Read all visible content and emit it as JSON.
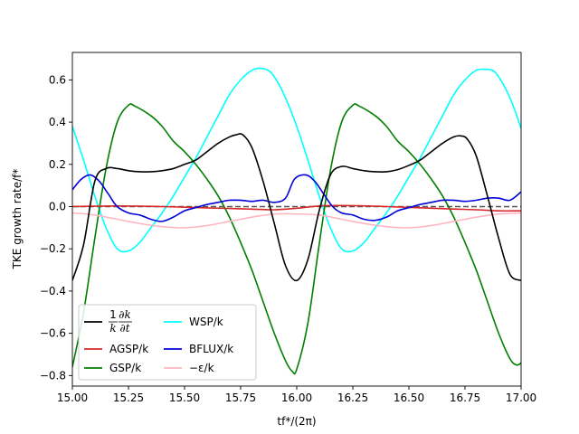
{
  "chart_data": {
    "type": "line",
    "xlabel": "tf*/(2π)",
    "ylabel": "TKE growth rate/f*",
    "xlim": [
      15.0,
      17.0
    ],
    "ylim": [
      -0.85,
      0.73
    ],
    "xticks": [
      "15.00",
      "15.25",
      "15.50",
      "15.75",
      "16.00",
      "16.25",
      "16.50",
      "16.75",
      "17.00"
    ],
    "yticks": [
      "0.6",
      "0.4",
      "0.2",
      "0.0",
      "−0.2",
      "−0.4",
      "−0.6",
      "−0.8"
    ],
    "grid": false,
    "legend_placement": "lower-left",
    "reference_line": {
      "y": 0.0,
      "style": "dashed",
      "color": "#555555"
    },
    "series": [
      {
        "name": "(1/k) ∂k/∂t",
        "color": "#000000",
        "x": [
          15.0,
          15.05,
          15.1,
          15.15,
          15.2,
          15.25,
          15.3,
          15.35,
          15.4,
          15.45,
          15.5,
          15.55,
          15.6,
          15.65,
          15.7,
          15.73,
          15.76,
          15.8,
          15.85,
          15.9,
          15.95,
          16.0,
          16.05,
          16.1,
          16.15,
          16.2,
          16.25,
          16.3,
          16.35,
          16.4,
          16.45,
          16.5,
          16.55,
          16.6,
          16.65,
          16.7,
          16.73,
          16.76,
          16.8,
          16.85,
          16.9,
          16.95,
          17.0
        ],
        "values": [
          -0.35,
          -0.18,
          0.12,
          0.18,
          0.18,
          0.17,
          0.165,
          0.165,
          0.17,
          0.18,
          0.2,
          0.22,
          0.26,
          0.3,
          0.33,
          0.34,
          0.34,
          0.28,
          0.12,
          -0.08,
          -0.28,
          -0.35,
          -0.25,
          -0.02,
          0.15,
          0.19,
          0.18,
          0.17,
          0.165,
          0.165,
          0.175,
          0.195,
          0.22,
          0.26,
          0.3,
          0.33,
          0.335,
          0.32,
          0.24,
          0.05,
          -0.15,
          -0.32,
          -0.35
        ]
      },
      {
        "name": "AGSP/k",
        "color": "#d62728",
        "x": [
          15.0,
          15.2,
          15.4,
          15.6,
          15.8,
          15.9,
          16.0,
          16.1,
          16.2,
          16.4,
          16.6,
          16.8,
          16.9,
          17.0
        ],
        "values": [
          0.0,
          0.003,
          0.0,
          -0.006,
          -0.012,
          -0.015,
          -0.008,
          0.003,
          0.005,
          0.0,
          -0.008,
          -0.015,
          -0.02,
          -0.02
        ]
      },
      {
        "name": "GSP/k",
        "color": "#008000",
        "x": [
          15.0,
          15.05,
          15.1,
          15.15,
          15.2,
          15.25,
          15.28,
          15.35,
          15.4,
          15.45,
          15.5,
          15.55,
          15.6,
          15.65,
          15.7,
          15.75,
          15.8,
          15.85,
          15.9,
          15.95,
          15.98,
          16.0,
          16.05,
          16.1,
          16.15,
          16.2,
          16.25,
          16.28,
          16.35,
          16.4,
          16.45,
          16.5,
          16.55,
          16.6,
          16.65,
          16.7,
          16.75,
          16.8,
          16.85,
          16.9,
          16.95,
          16.98,
          17.0
        ],
        "values": [
          -0.76,
          -0.5,
          -0.15,
          0.18,
          0.4,
          0.48,
          0.475,
          0.43,
          0.38,
          0.31,
          0.26,
          0.2,
          0.13,
          0.05,
          -0.05,
          -0.17,
          -0.3,
          -0.45,
          -0.6,
          -0.73,
          -0.78,
          -0.77,
          -0.55,
          -0.18,
          0.17,
          0.4,
          0.48,
          0.475,
          0.43,
          0.38,
          0.31,
          0.26,
          0.2,
          0.13,
          0.05,
          -0.05,
          -0.17,
          -0.3,
          -0.45,
          -0.6,
          -0.72,
          -0.75,
          -0.74
        ]
      },
      {
        "name": "WSP/k",
        "color": "#00ffff",
        "x": [
          15.0,
          15.05,
          15.1,
          15.15,
          15.2,
          15.25,
          15.3,
          15.35,
          15.4,
          15.45,
          15.5,
          15.55,
          15.6,
          15.65,
          15.7,
          15.75,
          15.8,
          15.84,
          15.88,
          15.92,
          15.96,
          16.0,
          16.05,
          16.1,
          16.15,
          16.2,
          16.25,
          16.3,
          16.35,
          16.4,
          16.45,
          16.5,
          16.55,
          16.6,
          16.65,
          16.7,
          16.75,
          16.8,
          16.84,
          16.88,
          16.92,
          16.96,
          17.0
        ],
        "values": [
          0.38,
          0.22,
          0.05,
          -0.1,
          -0.2,
          -0.21,
          -0.17,
          -0.1,
          -0.03,
          0.05,
          0.14,
          0.23,
          0.33,
          0.43,
          0.53,
          0.6,
          0.645,
          0.655,
          0.64,
          0.58,
          0.49,
          0.38,
          0.22,
          0.05,
          -0.1,
          -0.2,
          -0.21,
          -0.17,
          -0.1,
          -0.03,
          0.05,
          0.14,
          0.23,
          0.33,
          0.43,
          0.53,
          0.6,
          0.645,
          0.65,
          0.64,
          0.58,
          0.49,
          0.37
        ]
      },
      {
        "name": "BFLUX/k",
        "color": "#0000dd",
        "x": [
          15.0,
          15.04,
          15.08,
          15.12,
          15.16,
          15.2,
          15.25,
          15.3,
          15.35,
          15.4,
          15.45,
          15.5,
          15.55,
          15.6,
          15.65,
          15.7,
          15.75,
          15.8,
          15.85,
          15.9,
          15.95,
          15.99,
          16.04,
          16.08,
          16.12,
          16.16,
          16.2,
          16.25,
          16.3,
          16.35,
          16.4,
          16.45,
          16.5,
          16.55,
          16.6,
          16.65,
          16.7,
          16.75,
          16.8,
          16.85,
          16.9,
          16.95,
          17.0
        ],
        "values": [
          0.08,
          0.13,
          0.15,
          0.12,
          0.06,
          0.0,
          -0.03,
          -0.04,
          -0.06,
          -0.07,
          -0.05,
          -0.02,
          -0.005,
          0.01,
          0.02,
          0.03,
          0.03,
          0.025,
          0.03,
          0.02,
          0.04,
          0.13,
          0.15,
          0.12,
          0.06,
          0.0,
          -0.03,
          -0.04,
          -0.06,
          -0.065,
          -0.05,
          -0.02,
          -0.005,
          0.01,
          0.02,
          0.03,
          0.03,
          0.025,
          0.03,
          0.04,
          0.04,
          0.03,
          0.07
        ]
      },
      {
        "name": "−ε/k",
        "color": "#ffb6c1",
        "x": [
          15.0,
          15.1,
          15.2,
          15.3,
          15.4,
          15.5,
          15.6,
          15.7,
          15.8,
          15.9,
          16.0,
          16.1,
          16.2,
          16.3,
          16.4,
          16.5,
          16.6,
          16.7,
          16.8,
          16.9,
          17.0
        ],
        "values": [
          -0.03,
          -0.04,
          -0.06,
          -0.08,
          -0.095,
          -0.1,
          -0.09,
          -0.07,
          -0.05,
          -0.035,
          -0.035,
          -0.04,
          -0.06,
          -0.08,
          -0.095,
          -0.1,
          -0.09,
          -0.07,
          -0.05,
          -0.035,
          -0.03
        ]
      }
    ],
    "legend": [
      {
        "series_index": 0,
        "column": 0,
        "row": 0
      },
      {
        "series_index": 1,
        "column": 0,
        "row": 1
      },
      {
        "series_index": 2,
        "column": 0,
        "row": 2
      },
      {
        "series_index": 3,
        "column": 1,
        "row": 0
      },
      {
        "series_index": 4,
        "column": 1,
        "row": 1
      },
      {
        "series_index": 5,
        "column": 1,
        "row": 2
      }
    ]
  }
}
